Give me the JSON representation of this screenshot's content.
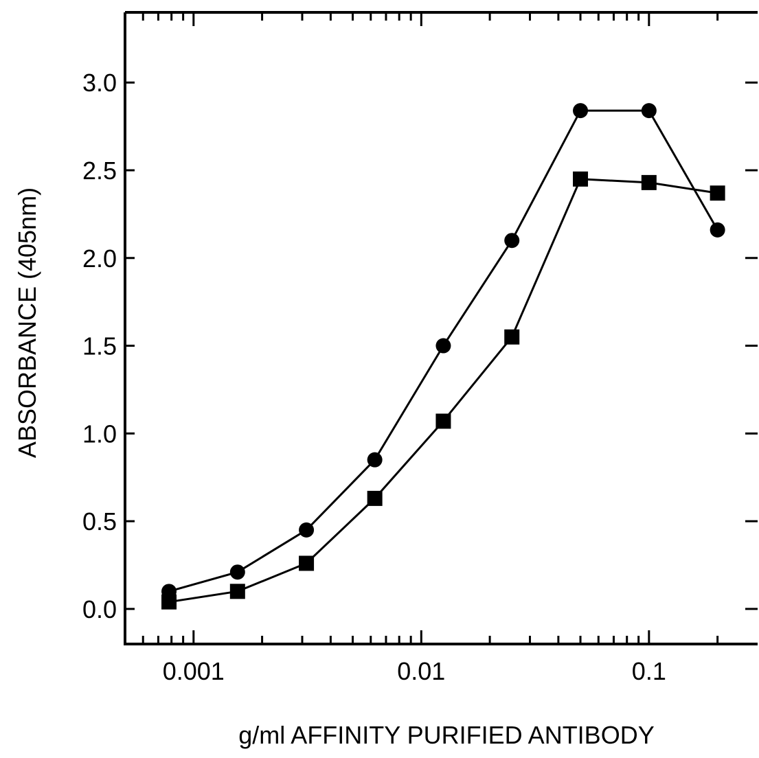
{
  "chart_data": {
    "type": "line",
    "title": "",
    "xlabel": "g/ml AFFINITY PURIFIED ANTIBODY",
    "ylabel": "ABSORBANCE (405nm)",
    "xscale": "log",
    "xlim": [
      0.0005,
      0.3
    ],
    "ylim": [
      -0.2,
      3.4
    ],
    "xticks": [
      {
        "value": 0.001,
        "label": "0.001"
      },
      {
        "value": 0.01,
        "label": "0.01"
      },
      {
        "value": 0.1,
        "label": "0.1"
      }
    ],
    "yticks": [
      {
        "value": 0.0,
        "label": "0.0"
      },
      {
        "value": 0.5,
        "label": "0.5"
      },
      {
        "value": 1.0,
        "label": "1.0"
      },
      {
        "value": 1.5,
        "label": "1.5"
      },
      {
        "value": 2.0,
        "label": "2.0"
      },
      {
        "value": 2.5,
        "label": "2.5"
      },
      {
        "value": 3.0,
        "label": "3.0"
      }
    ],
    "grid": false,
    "series": [
      {
        "marker": "circle",
        "color": "#000000",
        "points": [
          {
            "x": 0.00078,
            "y": 0.1
          },
          {
            "x": 0.00156,
            "y": 0.21
          },
          {
            "x": 0.00313,
            "y": 0.45
          },
          {
            "x": 0.00625,
            "y": 0.85
          },
          {
            "x": 0.0125,
            "y": 1.5
          },
          {
            "x": 0.025,
            "y": 2.1
          },
          {
            "x": 0.05,
            "y": 2.84
          },
          {
            "x": 0.1,
            "y": 2.84
          },
          {
            "x": 0.2,
            "y": 2.16
          }
        ]
      },
      {
        "marker": "square",
        "color": "#000000",
        "points": [
          {
            "x": 0.00078,
            "y": 0.04
          },
          {
            "x": 0.00156,
            "y": 0.1
          },
          {
            "x": 0.00313,
            "y": 0.26
          },
          {
            "x": 0.00625,
            "y": 0.63
          },
          {
            "x": 0.0125,
            "y": 1.07
          },
          {
            "x": 0.025,
            "y": 1.55
          },
          {
            "x": 0.05,
            "y": 2.45
          },
          {
            "x": 0.1,
            "y": 2.43
          },
          {
            "x": 0.2,
            "y": 2.37
          }
        ]
      }
    ]
  }
}
